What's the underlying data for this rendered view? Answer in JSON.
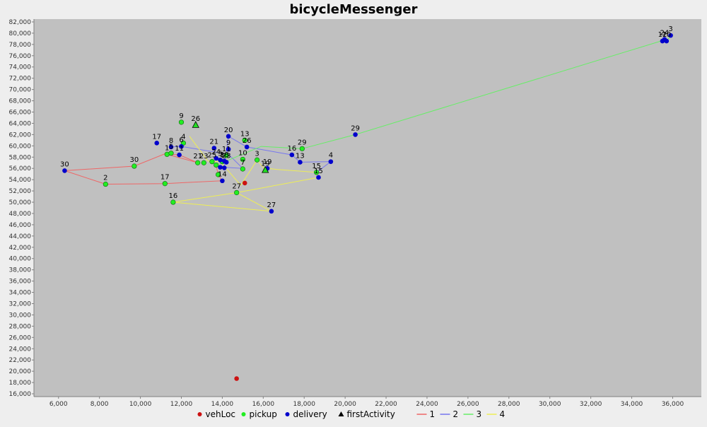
{
  "chart_data": {
    "type": "scatter",
    "title": "bicycleMessenger",
    "xlabel": "",
    "ylabel": "",
    "xlim": [
      4800,
      37400
    ],
    "ylim": [
      15500,
      82500
    ],
    "xticks": [
      6000,
      8000,
      10000,
      12000,
      14000,
      16000,
      18000,
      20000,
      22000,
      24000,
      26000,
      28000,
      30000,
      32000,
      34000,
      36000
    ],
    "yticks": [
      16000,
      18000,
      20000,
      22000,
      24000,
      26000,
      28000,
      30000,
      32000,
      34000,
      36000,
      38000,
      40000,
      42000,
      44000,
      46000,
      48000,
      50000,
      52000,
      54000,
      56000,
      58000,
      60000,
      62000,
      64000,
      66000,
      68000,
      70000,
      72000,
      74000,
      76000,
      78000,
      80000,
      82000
    ],
    "xtick_labels": [
      "6,000",
      "8,000",
      "10,000",
      "12,000",
      "14,000",
      "16,000",
      "18,000",
      "20,000",
      "22,000",
      "24,000",
      "26,000",
      "28,000",
      "30,000",
      "32,000",
      "34,000",
      "36,000"
    ],
    "ytick_labels": [
      "16,000",
      "18,000",
      "20,000",
      "22,000",
      "24,000",
      "26,000",
      "28,000",
      "30,000",
      "32,000",
      "34,000",
      "36,000",
      "38,000",
      "40,000",
      "42,000",
      "44,000",
      "46,000",
      "48,000",
      "50,000",
      "52,000",
      "54,000",
      "56,000",
      "58,000",
      "60,000",
      "62,000",
      "64,000",
      "66,000",
      "68,000",
      "70,000",
      "72,000",
      "74,000",
      "76,000",
      "78,000",
      "80,000",
      "82,000"
    ],
    "grid": false,
    "legend_position": "bottom",
    "colors": {
      "plot_background": "#c0c0c0",
      "page_background": "#eeeeee",
      "vehLoc": "#cc1111",
      "pickup": "#22ee22",
      "delivery": "#0000cc",
      "firstActivity": "#22dd22",
      "route_1": "#ee6666",
      "route_2": "#7777ee",
      "route_3": "#66ee66",
      "route_4": "#eeee55"
    },
    "legend": [
      {
        "label": "vehLoc",
        "kind": "dot",
        "color": "#cc1111"
      },
      {
        "label": "pickup",
        "kind": "dot",
        "color": "#22ee22"
      },
      {
        "label": "delivery",
        "kind": "dot",
        "color": "#0000cc"
      },
      {
        "label": "firstActivity",
        "kind": "triangle",
        "color": "#000000"
      },
      {
        "label": "1",
        "kind": "line",
        "color": "#ee6666"
      },
      {
        "label": "2",
        "kind": "line",
        "color": "#7777ee"
      },
      {
        "label": "3",
        "kind": "line",
        "color": "#66ee66"
      },
      {
        "label": "4",
        "kind": "line",
        "color": "#eeee55"
      }
    ],
    "routes": [
      {
        "name": "1",
        "color": "#ee6666",
        "points": [
          [
            11200,
            58600
          ],
          [
            11900,
            58400
          ],
          [
            12800,
            57000
          ],
          [
            11200,
            58600
          ],
          [
            9700,
            56400
          ],
          [
            6300,
            55600
          ],
          [
            8300,
            53200
          ],
          [
            11200,
            53300
          ],
          [
            14000,
            53800
          ],
          [
            13800,
            54900
          ],
          [
            13700,
            56500
          ]
        ]
      },
      {
        "name": "2",
        "color": "#7777ee",
        "points": [
          [
            11500,
            59800
          ],
          [
            12000,
            59900
          ],
          [
            14300,
            58500
          ],
          [
            15000,
            56000
          ],
          [
            14100,
            56200
          ],
          [
            14300,
            61700
          ],
          [
            15200,
            59800
          ],
          [
            17400,
            58400
          ],
          [
            17800,
            57100
          ],
          [
            19300,
            57200
          ],
          [
            18600,
            55300
          ],
          [
            18700,
            54400
          ]
        ]
      },
      {
        "name": "3",
        "color": "#66ee66",
        "points": [
          [
            14000,
            57000
          ],
          [
            15900,
            59900
          ],
          [
            17900,
            59500
          ],
          [
            20500,
            62000
          ],
          [
            35600,
            78800
          ],
          [
            35500,
            78600
          ],
          [
            35700,
            78600
          ],
          [
            35900,
            79600
          ]
        ]
      },
      {
        "name": "4",
        "color": "#eeee55",
        "points": [
          [
            12400,
            61700
          ],
          [
            13300,
            57300
          ],
          [
            13900,
            57200
          ],
          [
            14900,
            53000
          ],
          [
            15700,
            57500
          ],
          [
            16100,
            55700
          ],
          [
            16200,
            56000
          ],
          [
            16700,
            55800
          ],
          [
            18600,
            55300
          ],
          [
            18700,
            54400
          ],
          [
            14700,
            51700
          ],
          [
            16400,
            48400
          ],
          [
            14700,
            51700
          ],
          [
            11600,
            50000
          ],
          [
            16400,
            48400
          ]
        ]
      }
    ],
    "vehLoc": [
      {
        "x": 14700,
        "y": 18700
      },
      {
        "x": 15100,
        "y": 53400
      }
    ],
    "pickups": [
      {
        "x": 12000,
        "y": 64200,
        "label": "9"
      },
      {
        "x": 12100,
        "y": 60500,
        "label": "4"
      },
      {
        "x": 11300,
        "y": 58500,
        "label": "1"
      },
      {
        "x": 11500,
        "y": 58700,
        "label": "5"
      },
      {
        "x": 12800,
        "y": 57000,
        "label": "21"
      },
      {
        "x": 13100,
        "y": 57000,
        "label": "23"
      },
      {
        "x": 13500,
        "y": 57200,
        "label": "25"
      },
      {
        "x": 13700,
        "y": 56600,
        "label": ""
      },
      {
        "x": 13800,
        "y": 54900,
        "label": ""
      },
      {
        "x": 14000,
        "y": 57200,
        "label": "8"
      },
      {
        "x": 15000,
        "y": 57600,
        "label": "10"
      },
      {
        "x": 15000,
        "y": 55900,
        "label": "7"
      },
      {
        "x": 15100,
        "y": 61000,
        "label": "13"
      },
      {
        "x": 15700,
        "y": 57500,
        "label": "3"
      },
      {
        "x": 9700,
        "y": 56400,
        "label": "30"
      },
      {
        "x": 8300,
        "y": 53200,
        "label": "2"
      },
      {
        "x": 11200,
        "y": 53300,
        "label": "17"
      },
      {
        "x": 11600,
        "y": 50000,
        "label": "16"
      },
      {
        "x": 14700,
        "y": 51700,
        "label": "27"
      },
      {
        "x": 17900,
        "y": 59500,
        "label": "29"
      },
      {
        "x": 18600,
        "y": 55300,
        "label": "15"
      },
      {
        "x": 14200,
        "y": 58300,
        "label": "11"
      }
    ],
    "deliveries": [
      {
        "x": 10800,
        "y": 60500,
        "label": "17"
      },
      {
        "x": 11500,
        "y": 59800,
        "label": "8"
      },
      {
        "x": 12000,
        "y": 59900,
        "label": "6"
      },
      {
        "x": 11900,
        "y": 58400,
        "label": "11"
      },
      {
        "x": 6300,
        "y": 55600,
        "label": "30"
      },
      {
        "x": 13600,
        "y": 59600,
        "label": "21"
      },
      {
        "x": 13700,
        "y": 57800,
        "label": "24"
      },
      {
        "x": 13900,
        "y": 57500,
        "label": "5"
      },
      {
        "x": 14100,
        "y": 57300,
        "label": "18"
      },
      {
        "x": 14200,
        "y": 57100,
        "label": "23"
      },
      {
        "x": 13900,
        "y": 56200,
        "label": ""
      },
      {
        "x": 14100,
        "y": 56100,
        "label": ""
      },
      {
        "x": 14000,
        "y": 53800,
        "label": "14"
      },
      {
        "x": 14300,
        "y": 61700,
        "label": "20"
      },
      {
        "x": 14300,
        "y": 59400,
        "label": "9"
      },
      {
        "x": 15200,
        "y": 59800,
        "label": "26"
      },
      {
        "x": 16200,
        "y": 56000,
        "label": "19"
      },
      {
        "x": 17400,
        "y": 58400,
        "label": "16"
      },
      {
        "x": 17800,
        "y": 57100,
        "label": "13"
      },
      {
        "x": 19300,
        "y": 57200,
        "label": "4"
      },
      {
        "x": 18700,
        "y": 54400,
        "label": "15"
      },
      {
        "x": 20500,
        "y": 62000,
        "label": "29"
      },
      {
        "x": 16400,
        "y": 48400,
        "label": "27"
      },
      {
        "x": 35500,
        "y": 78600,
        "label": "12"
      },
      {
        "x": 35700,
        "y": 78600,
        "label": "10"
      },
      {
        "x": 35600,
        "y": 78900,
        "label": "24"
      },
      {
        "x": 35900,
        "y": 79600,
        "label": "3"
      }
    ],
    "first_activities": [
      {
        "x": 12700,
        "y": 63700,
        "label": "26"
      },
      {
        "x": 16100,
        "y": 55700,
        "label": "19"
      }
    ]
  }
}
